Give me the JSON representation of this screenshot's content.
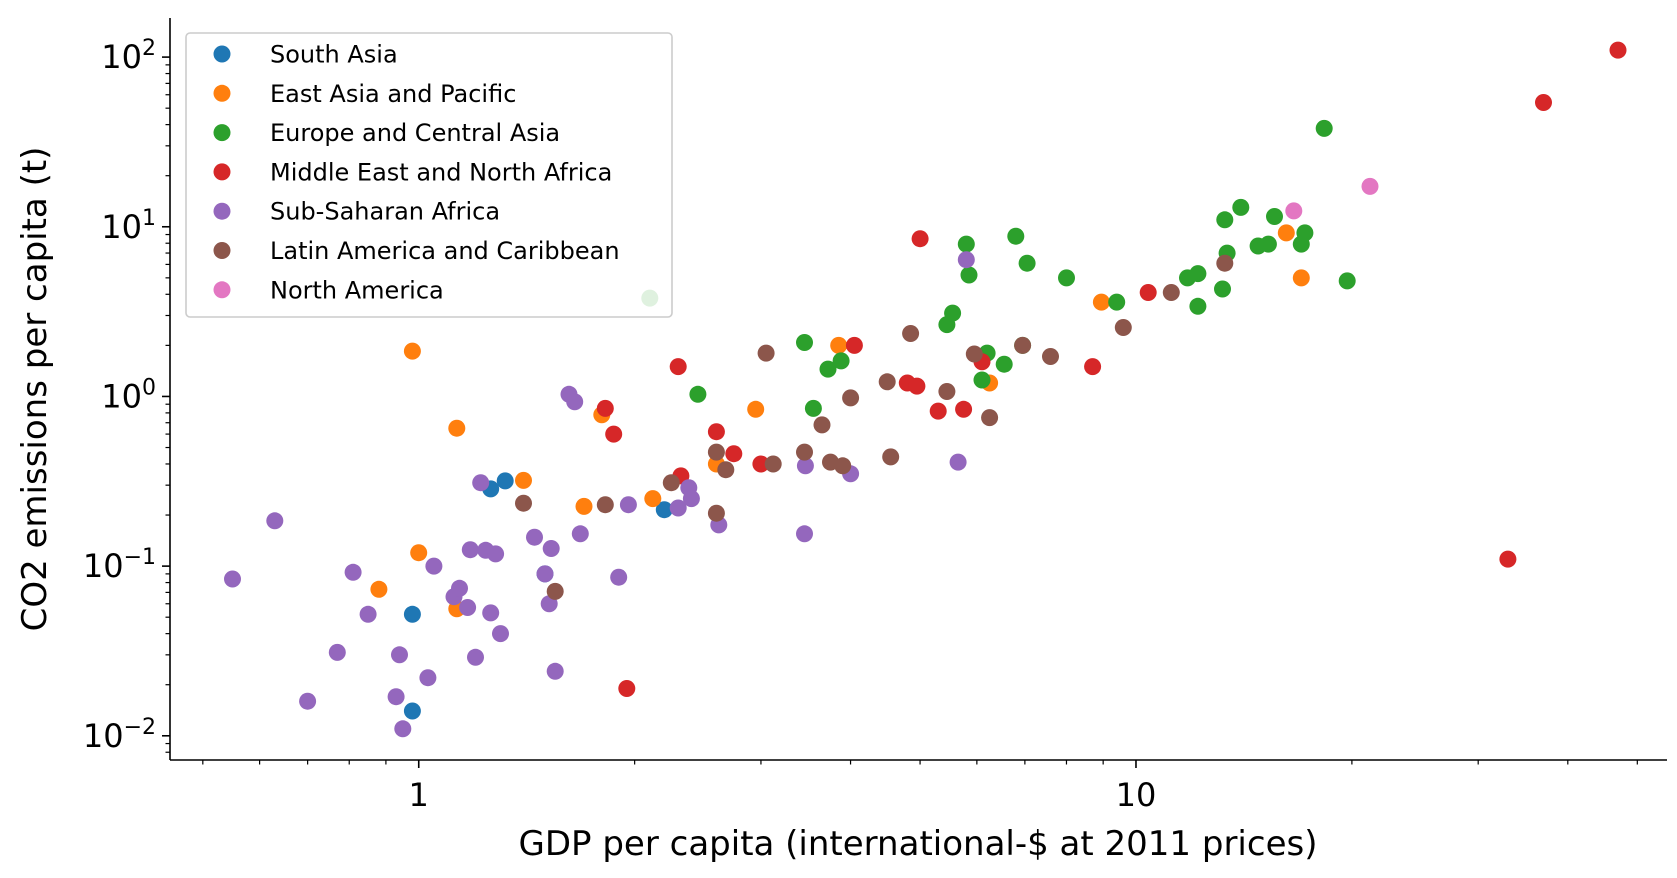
{
  "chart_data": {
    "type": "scatter",
    "xlabel": "GDP per capita (international-$ at 2011 prices)",
    "ylabel": "CO2 emissions per capita (t)",
    "xscale": "log",
    "yscale": "log",
    "xlim": [
      0.45,
      55
    ],
    "ylim": [
      0.0072,
      170
    ],
    "xticks": [
      {
        "value": 1,
        "label": "1"
      },
      {
        "value": 10,
        "label": "10"
      }
    ],
    "yticks": [
      {
        "value": 0.01,
        "base": "10",
        "exp": "−2"
      },
      {
        "value": 0.1,
        "base": "10",
        "exp": "−1"
      },
      {
        "value": 1,
        "base": "10",
        "exp": "0"
      },
      {
        "value": 10,
        "base": "10",
        "exp": "1"
      },
      {
        "value": 100,
        "base": "10",
        "exp": "2"
      }
    ],
    "grid": false,
    "legend_position": "top-left",
    "series": [
      {
        "name": "South Asia",
        "color": "#1f77b4",
        "points": [
          [
            1.26,
            0.285
          ],
          [
            1.32,
            0.318
          ],
          [
            0.98,
            0.052
          ],
          [
            0.98,
            0.014
          ],
          [
            1.5,
            0.09
          ],
          [
            2.2,
            0.215
          ]
        ]
      },
      {
        "name": "East Asia and Pacific",
        "color": "#ff7f0e",
        "points": [
          [
            0.98,
            1.85
          ],
          [
            1.13,
            0.65
          ],
          [
            1.4,
            0.32
          ],
          [
            0.88,
            0.073
          ],
          [
            1.0,
            0.12
          ],
          [
            1.13,
            0.056
          ],
          [
            1.7,
            0.225
          ],
          [
            1.8,
            0.78
          ],
          [
            2.12,
            0.25
          ],
          [
            2.6,
            0.4
          ],
          [
            2.95,
            0.84
          ],
          [
            3.85,
            2.0
          ],
          [
            6.25,
            1.2
          ],
          [
            8.95,
            3.6
          ],
          [
            16.2,
            9.2
          ],
          [
            17.0,
            5.0
          ]
        ]
      },
      {
        "name": "Europe and Central Asia",
        "color": "#2ca02c",
        "points": [
          [
            2.1,
            3.8
          ],
          [
            2.45,
            1.03
          ],
          [
            3.45,
            2.08
          ],
          [
            3.55,
            0.85
          ],
          [
            3.72,
            1.45
          ],
          [
            3.88,
            1.62
          ],
          [
            5.45,
            2.65
          ],
          [
            5.55,
            3.1
          ],
          [
            5.8,
            7.9
          ],
          [
            5.85,
            5.2
          ],
          [
            6.1,
            1.25
          ],
          [
            6.2,
            1.8
          ],
          [
            6.55,
            1.55
          ],
          [
            6.8,
            8.8
          ],
          [
            6.95,
            2.0
          ],
          [
            7.05,
            6.1
          ],
          [
            8.0,
            5.0
          ],
          [
            9.4,
            3.6
          ],
          [
            11.8,
            5.0
          ],
          [
            12.2,
            5.3
          ],
          [
            12.2,
            3.4
          ],
          [
            13.2,
            4.3
          ],
          [
            13.3,
            11.0
          ],
          [
            13.4,
            7.0
          ],
          [
            14.0,
            13.0
          ],
          [
            14.8,
            7.7
          ],
          [
            15.3,
            7.9
          ],
          [
            15.6,
            11.5
          ],
          [
            17.0,
            7.9
          ],
          [
            17.2,
            9.2
          ],
          [
            18.3,
            38.0
          ],
          [
            19.7,
            4.8
          ]
        ]
      },
      {
        "name": "Middle East and North Africa",
        "color": "#d62728",
        "points": [
          [
            1.82,
            0.85
          ],
          [
            1.87,
            0.6
          ],
          [
            1.95,
            0.019
          ],
          [
            2.3,
            1.5
          ],
          [
            2.32,
            0.34
          ],
          [
            2.6,
            0.62
          ],
          [
            2.75,
            0.46
          ],
          [
            3.0,
            0.4
          ],
          [
            4.05,
            2.0
          ],
          [
            4.8,
            1.2
          ],
          [
            4.95,
            1.15
          ],
          [
            5.0,
            8.5
          ],
          [
            5.3,
            0.82
          ],
          [
            5.75,
            0.84
          ],
          [
            6.1,
            1.6
          ],
          [
            8.7,
            1.5
          ],
          [
            10.4,
            4.1
          ],
          [
            33.0,
            0.11
          ],
          [
            37.0,
            54.0
          ],
          [
            47.0,
            110.0
          ]
        ]
      },
      {
        "name": "Sub-Saharan Africa",
        "color": "#9467bd",
        "points": [
          [
            0.55,
            0.084
          ],
          [
            0.63,
            0.185
          ],
          [
            0.7,
            0.016
          ],
          [
            0.77,
            0.031
          ],
          [
            0.81,
            0.092
          ],
          [
            0.85,
            0.052
          ],
          [
            0.93,
            0.017
          ],
          [
            0.94,
            0.03
          ],
          [
            0.95,
            0.011
          ],
          [
            1.03,
            0.022
          ],
          [
            1.05,
            0.1
          ],
          [
            1.12,
            0.066
          ],
          [
            1.14,
            0.074
          ],
          [
            1.17,
            0.057
          ],
          [
            1.18,
            0.125
          ],
          [
            1.2,
            0.029
          ],
          [
            1.22,
            0.31
          ],
          [
            1.24,
            0.124
          ],
          [
            1.26,
            0.053
          ],
          [
            1.28,
            0.118
          ],
          [
            1.3,
            0.04
          ],
          [
            1.45,
            0.148
          ],
          [
            1.5,
            0.09
          ],
          [
            1.52,
            0.06
          ],
          [
            1.53,
            0.127
          ],
          [
            1.55,
            0.024
          ],
          [
            1.62,
            1.03
          ],
          [
            1.65,
            0.93
          ],
          [
            1.68,
            0.155
          ],
          [
            1.9,
            0.086
          ],
          [
            1.96,
            0.23
          ],
          [
            2.3,
            0.22
          ],
          [
            2.38,
            0.29
          ],
          [
            2.4,
            0.25
          ],
          [
            2.62,
            0.175
          ],
          [
            3.45,
            0.155
          ],
          [
            3.46,
            0.39
          ],
          [
            4.0,
            0.35
          ],
          [
            5.65,
            0.41
          ],
          [
            5.8,
            6.4
          ]
        ]
      },
      {
        "name": "Latin America and Caribbean",
        "color": "#8c564b",
        "points": [
          [
            1.4,
            0.235
          ],
          [
            1.55,
            0.071
          ],
          [
            1.82,
            0.23
          ],
          [
            2.25,
            0.31
          ],
          [
            2.6,
            0.47
          ],
          [
            2.6,
            0.205
          ],
          [
            2.68,
            0.37
          ],
          [
            3.05,
            1.8
          ],
          [
            3.12,
            0.4
          ],
          [
            3.45,
            0.47
          ],
          [
            3.65,
            0.68
          ],
          [
            3.75,
            0.41
          ],
          [
            3.9,
            0.39
          ],
          [
            4.0,
            0.98
          ],
          [
            4.5,
            1.22
          ],
          [
            4.55,
            0.44
          ],
          [
            4.85,
            2.35
          ],
          [
            5.45,
            1.07
          ],
          [
            5.95,
            1.78
          ],
          [
            6.25,
            0.75
          ],
          [
            6.95,
            2.0
          ],
          [
            7.6,
            1.72
          ],
          [
            9.6,
            2.55
          ],
          [
            11.2,
            4.1
          ],
          [
            13.3,
            6.1
          ]
        ]
      },
      {
        "name": "North America",
        "color": "#e377c2",
        "points": [
          [
            16.6,
            12.4
          ],
          [
            21.2,
            17.3
          ]
        ]
      }
    ]
  }
}
